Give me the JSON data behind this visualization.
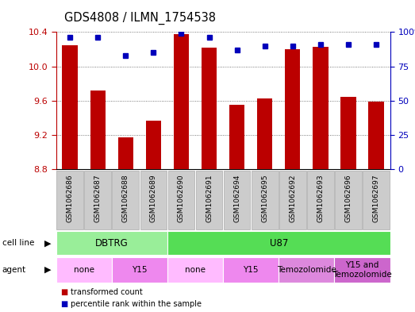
{
  "title": "GDS4808 / ILMN_1754538",
  "samples": [
    "GSM1062686",
    "GSM1062687",
    "GSM1062688",
    "GSM1062689",
    "GSM1062690",
    "GSM1062691",
    "GSM1062694",
    "GSM1062695",
    "GSM1062692",
    "GSM1062693",
    "GSM1062696",
    "GSM1062697"
  ],
  "bar_values": [
    10.25,
    9.72,
    9.17,
    9.37,
    10.38,
    10.22,
    9.55,
    9.63,
    10.2,
    10.23,
    9.65,
    9.59
  ],
  "percentile_values": [
    96,
    96,
    83,
    85,
    99,
    96,
    87,
    90,
    90,
    91,
    91,
    91
  ],
  "ylim_left": [
    8.8,
    10.4
  ],
  "yticks_left": [
    8.8,
    9.2,
    9.6,
    10.0,
    10.4
  ],
  "yticks_right": [
    0,
    25,
    50,
    75,
    100
  ],
  "bar_color": "#bb0000",
  "dot_color": "#0000bb",
  "bar_bottom": 8.8,
  "cell_line_groups": [
    {
      "label": "DBTRG",
      "start": 0,
      "end": 4,
      "color": "#99ee99"
    },
    {
      "label": "U87",
      "start": 4,
      "end": 12,
      "color": "#55dd55"
    }
  ],
  "agent_groups": [
    {
      "label": "none",
      "start": 0,
      "end": 2,
      "color": "#ffbbff"
    },
    {
      "label": "Y15",
      "start": 2,
      "end": 4,
      "color": "#ee88ee"
    },
    {
      "label": "none",
      "start": 4,
      "end": 6,
      "color": "#ffbbff"
    },
    {
      "label": "Y15",
      "start": 6,
      "end": 8,
      "color": "#ee88ee"
    },
    {
      "label": "Temozolomide",
      "start": 8,
      "end": 10,
      "color": "#dd88dd"
    },
    {
      "label": "Y15 and\nTemozolomide",
      "start": 10,
      "end": 12,
      "color": "#cc66cc"
    }
  ],
  "legend_items": [
    {
      "label": "transformed count",
      "color": "#bb0000"
    },
    {
      "label": "percentile rank within the sample",
      "color": "#0000bb"
    }
  ],
  "grid_color": "#555555",
  "sample_box_color": "#cccccc",
  "sample_box_edge": "#aaaaaa"
}
